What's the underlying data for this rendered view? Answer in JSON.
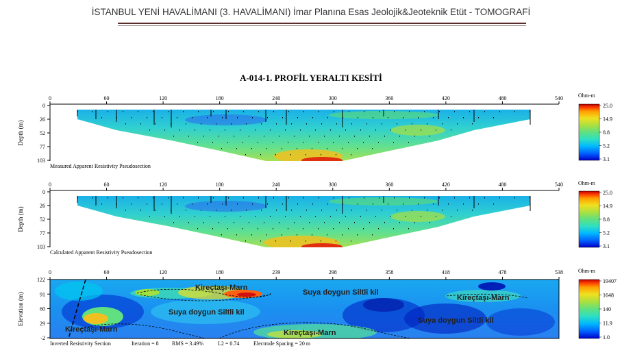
{
  "header": "İSTANBUL YENİ HAVALİMANI (3. HAVALİMANI) İmar Planına Esas Jeolojik&Jeoteknik Etüt - TOMOGRAFİ",
  "title": "A-014-1. PROFİL YERALTI KESİTİ",
  "colors": {
    "header_rule": "#5b2c2c",
    "scale": [
      "#0000c8",
      "#0060ff",
      "#00b8ff",
      "#30e0c0",
      "#60e080",
      "#a8e040",
      "#f0e020",
      "#ffa000",
      "#ff4000",
      "#c00000"
    ]
  },
  "chart_data": [
    {
      "type": "heatmap",
      "caption": "Measured Apparent Resistivity Pseudosection",
      "xlabel": "",
      "ylabel": "Depth (m)",
      "xlim": [
        0,
        540
      ],
      "x_ticks": [
        "0",
        "60",
        "120",
        "180",
        "240",
        "300",
        "360",
        "420",
        "480",
        "540"
      ],
      "y_ticks": [
        "0",
        "26",
        "52",
        "77",
        "103"
      ],
      "legend_title": "Ohm-m",
      "legend_ticks": [
        "25.0",
        "14.9",
        "8.8",
        "5.2",
        "3.1"
      ]
    },
    {
      "type": "heatmap",
      "caption": "Calculated Apparent Resistivity Pseudosection",
      "xlabel": "",
      "ylabel": "Depth (m)",
      "xlim": [
        0,
        540
      ],
      "x_ticks": [
        "0",
        "60",
        "120",
        "180",
        "240",
        "300",
        "360",
        "420",
        "480",
        "540"
      ],
      "y_ticks": [
        "0",
        "26",
        "52",
        "77",
        "103"
      ],
      "legend_title": "Ohm-m",
      "legend_ticks": [
        "25.0",
        "14.9",
        "8.8",
        "5.2",
        "3.1"
      ]
    },
    {
      "type": "heatmap",
      "caption": "Inverted Resistivity Section",
      "stats": {
        "iteration": "Iteration = 8",
        "rms": "RMS = 3.49%",
        "l2": "L2 = 0.74",
        "spacing": "Electrode Spacing = 20 m"
      },
      "xlabel": "",
      "ylabel": "Elevation (m)",
      "xlim": [
        0,
        538
      ],
      "x_ticks": [
        "0",
        "60",
        "120",
        "180",
        "239",
        "298",
        "358",
        "418",
        "478",
        "538"
      ],
      "y_ticks": [
        "122",
        "91",
        "60",
        "29",
        "-2"
      ],
      "legend_title": "Ohm-m",
      "legend_ticks": [
        "19407",
        "1648",
        "140",
        "11.9",
        "1.0"
      ],
      "annotations": [
        "Kireçtaşı-Marn",
        "Suya doygun Siltli kil",
        "Kireçtaşı-Marn",
        "Suya doygun Siltli kil",
        "Kireçtaşı-Marn",
        "Suya doygun Siltli kil",
        "Kireçtaşı-Marn"
      ]
    }
  ]
}
